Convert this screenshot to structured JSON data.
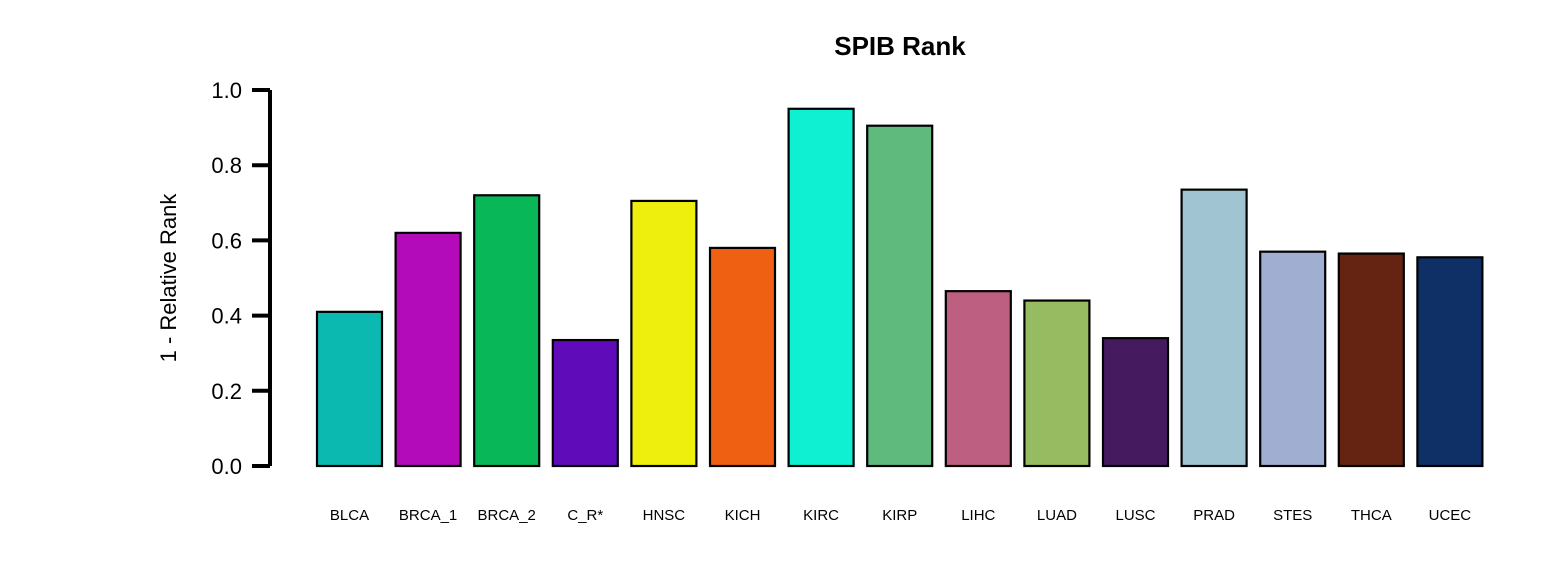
{
  "chart_data": {
    "type": "bar",
    "title": "SPIB Rank",
    "xlabel": "",
    "ylabel": "1 - Relative Rank",
    "ylim": [
      0,
      1.0
    ],
    "yticks": [
      "0.0",
      "0.2",
      "0.4",
      "0.6",
      "0.8",
      "1.0"
    ],
    "grid": false,
    "categories": [
      "BLCA",
      "BRCA_1",
      "BRCA_2",
      "C_R*",
      "HNSC",
      "KICH",
      "KIRC",
      "KIRP",
      "LIHC",
      "LUAD",
      "LUSC",
      "PRAD",
      "STES",
      "THCA",
      "UCEC"
    ],
    "values": [
      0.41,
      0.62,
      0.72,
      0.335,
      0.705,
      0.58,
      0.95,
      0.905,
      0.465,
      0.44,
      0.34,
      0.735,
      0.57,
      0.565,
      0.555
    ],
    "colors": [
      "#0bb9b1",
      "#b30bba",
      "#08b858",
      "#5f0bb9",
      "#eeef0c",
      "#f06012",
      "#0ff0d2",
      "#5fba7e",
      "#bd5f80",
      "#97bb60",
      "#461a5e",
      "#a1c4d2",
      "#a0aed2",
      "#652411",
      "#0e3066"
    ]
  }
}
